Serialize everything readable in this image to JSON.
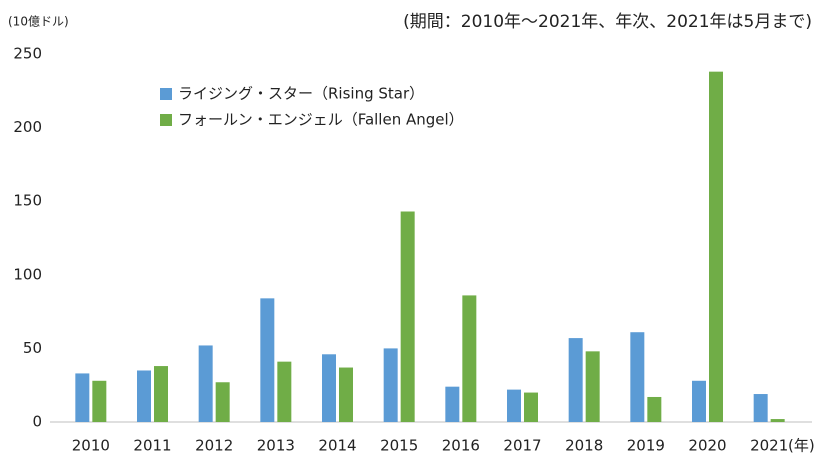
{
  "chart_data": {
    "type": "bar",
    "unit_label": "(10億ドル)",
    "subtitle": "(期間：2010年～2021年、年次、2021年は5月まで)",
    "x_label": "(年)",
    "categories": [
      "2010",
      "2011",
      "2012",
      "2013",
      "2014",
      "2015",
      "2016",
      "2017",
      "2018",
      "2019",
      "2020",
      "2021"
    ],
    "series": [
      {
        "name": "ライジング・スター（Rising Star）",
        "color": "#5b9bd5",
        "values": [
          33,
          35,
          52,
          84,
          46,
          50,
          24,
          22,
          57,
          61,
          28,
          19
        ]
      },
      {
        "name": "フォールン・エンジェル（Fallen Angel）",
        "color": "#70ad47",
        "values": [
          28,
          38,
          27,
          41,
          37,
          143,
          86,
          20,
          48,
          17,
          238,
          2
        ]
      }
    ],
    "ylim": [
      0,
      250
    ],
    "yticks": [
      0,
      50,
      100,
      150,
      200,
      250
    ],
    "grid": false,
    "legend": "top-left"
  }
}
